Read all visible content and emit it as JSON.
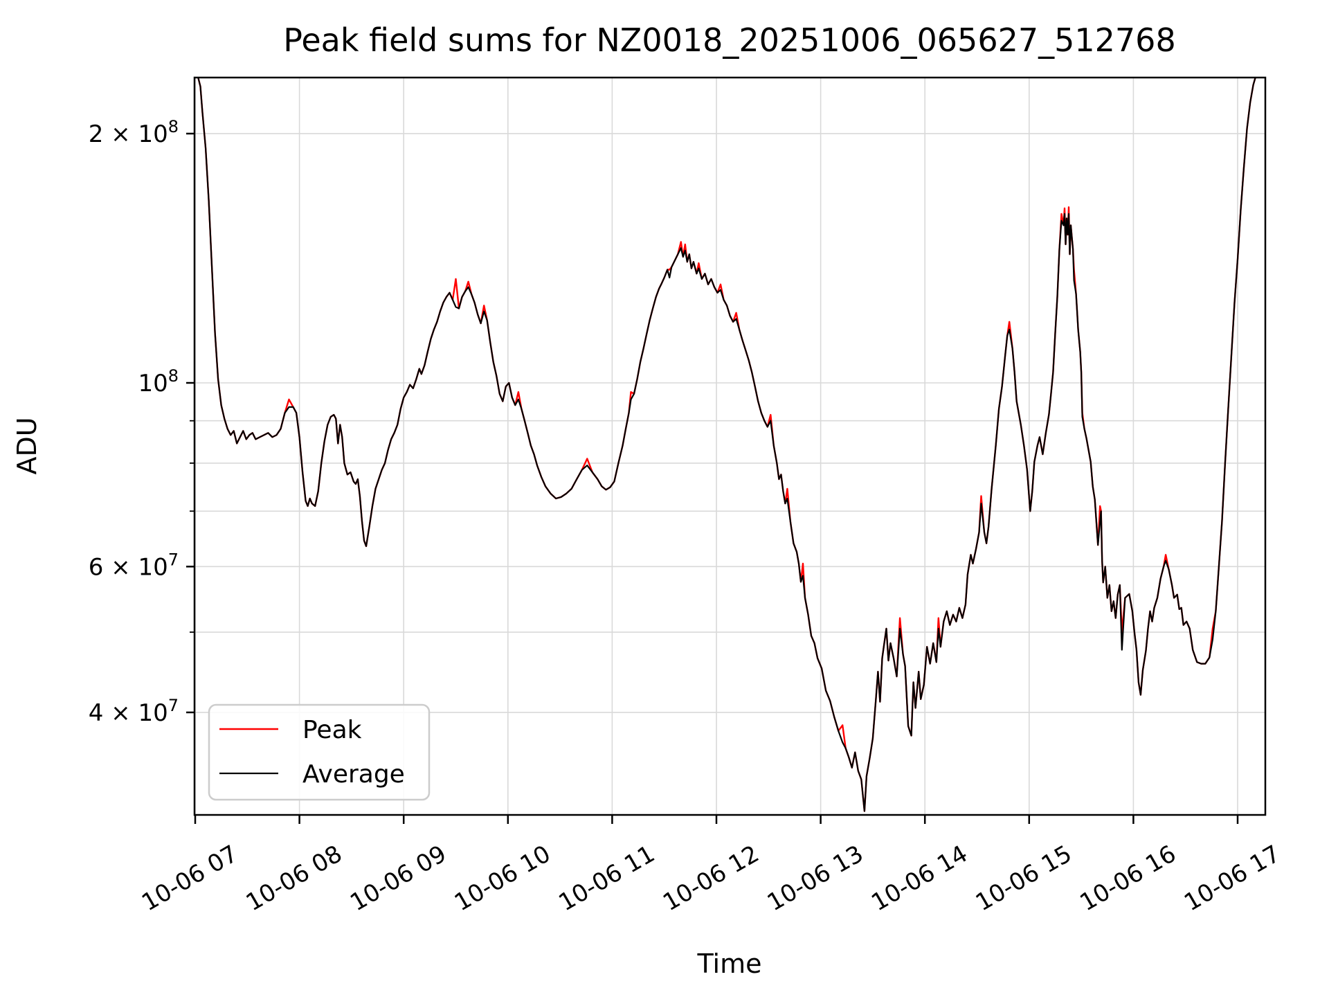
{
  "title": "Peak field sums for NZ0018_20251006_065627_512768",
  "axes": {
    "x_label": "Time",
    "y_label": "ADU"
  },
  "legend": {
    "items": [
      {
        "label": "Peak",
        "color": "#ff0000"
      },
      {
        "label": "Average",
        "color": "#000000"
      }
    ]
  },
  "chart_data": {
    "type": "line",
    "title": "Peak field sums for NZ0018_20251006_065627_512768",
    "xlabel": "Time",
    "ylabel": "ADU",
    "yscale": "log",
    "grid": "both",
    "legend_position": "lower left",
    "x_unit": "hours on 2025-10-06",
    "values_unit": "1e6 ADU",
    "xlim": [
      6.97,
      17.27
    ],
    "ylim_millions": [
      30.1,
      233.9
    ],
    "x_ticks": [
      {
        "t": 7,
        "label": "10-06 07"
      },
      {
        "t": 8,
        "label": "10-06 08"
      },
      {
        "t": 9,
        "label": "10-06 09"
      },
      {
        "t": 10,
        "label": "10-06 10"
      },
      {
        "t": 11,
        "label": "10-06 11"
      },
      {
        "t": 12,
        "label": "10-06 12"
      },
      {
        "t": 13,
        "label": "10-06 13"
      },
      {
        "t": 14,
        "label": "10-06 14"
      },
      {
        "t": 15,
        "label": "10-06 15"
      },
      {
        "t": 16,
        "label": "10-06 16"
      },
      {
        "t": 17,
        "label": "10-06 17"
      }
    ],
    "y_gridlines_millions": [
      200,
      100,
      90,
      80,
      70,
      60,
      50,
      40,
      30
    ],
    "y_ticks": [
      {
        "value": 200,
        "base": "2 × 10",
        "exp": "8"
      },
      {
        "value": 100,
        "base": "10",
        "exp": "8"
      },
      {
        "value": 60,
        "base": "6 × 10",
        "exp": "7"
      },
      {
        "value": 40,
        "base": "4 × 10",
        "exp": "7"
      }
    ],
    "series": [
      {
        "name": "Peak",
        "color": "#ff0000",
        "note": "identical to Average except upward spikes listed in overrides [t, value_millions]",
        "overrides": [
          [
            7.92,
            95.5
          ],
          [
            9.49,
            133.5
          ],
          [
            9.62,
            132.5
          ],
          [
            9.77,
            124
          ],
          [
            10.1,
            97.5
          ],
          [
            10.76,
            81
          ],
          [
            11.18,
            97.5
          ],
          [
            11.55,
            137
          ],
          [
            11.66,
            148
          ],
          [
            11.7,
            147
          ],
          [
            11.83,
            139.5
          ],
          [
            12.04,
            131.5
          ],
          [
            12.19,
            121.5
          ],
          [
            12.52,
            91.5
          ],
          [
            12.68,
            74.5
          ],
          [
            12.83,
            60.5
          ],
          [
            13.21,
            38.6
          ],
          [
            13.76,
            52
          ],
          [
            14.13,
            52
          ],
          [
            14.54,
            73
          ],
          [
            14.81,
            118.5
          ],
          [
            15.31,
            160
          ],
          [
            15.34,
            162.5
          ],
          [
            15.38,
            163
          ],
          [
            15.43,
            137
          ],
          [
            15.52,
            92
          ],
          [
            15.68,
            71
          ],
          [
            15.89,
            50
          ],
          [
            16.31,
            62
          ],
          [
            16.76,
            50.5
          ]
        ]
      },
      {
        "name": "Average",
        "color": "#000000",
        "t": [
          6.973,
          7.02,
          7.05,
          7.07,
          7.1,
          7.13,
          7.16,
          7.19,
          7.22,
          7.25,
          7.28,
          7.31,
          7.34,
          7.37,
          7.4,
          7.43,
          7.46,
          7.49,
          7.52,
          7.55,
          7.58,
          7.62,
          7.66,
          7.7,
          7.74,
          7.78,
          7.82,
          7.86,
          7.9,
          7.94,
          7.97,
          8.0,
          8.03,
          8.06,
          8.08,
          8.1,
          8.12,
          8.15,
          8.18,
          8.21,
          8.24,
          8.27,
          8.3,
          8.33,
          8.35,
          8.37,
          8.39,
          8.41,
          8.43,
          8.46,
          8.49,
          8.52,
          8.54,
          8.56,
          8.58,
          8.6,
          8.62,
          8.64,
          8.67,
          8.7,
          8.73,
          8.76,
          8.79,
          8.82,
          8.85,
          8.88,
          8.91,
          8.94,
          8.97,
          9.0,
          9.03,
          9.06,
          9.09,
          9.12,
          9.15,
          9.17,
          9.2,
          9.23,
          9.26,
          9.29,
          9.32,
          9.35,
          9.38,
          9.41,
          9.44,
          9.47,
          9.5,
          9.53,
          9.56,
          9.59,
          9.62,
          9.65,
          9.68,
          9.71,
          9.74,
          9.77,
          9.8,
          9.83,
          9.86,
          9.89,
          9.92,
          9.95,
          9.98,
          10.01,
          10.04,
          10.07,
          10.1,
          10.13,
          10.16,
          10.19,
          10.22,
          10.25,
          10.28,
          10.32,
          10.36,
          10.41,
          10.46,
          10.51,
          10.56,
          10.61,
          10.66,
          10.71,
          10.76,
          10.81,
          10.86,
          10.9,
          10.94,
          10.98,
          11.02,
          11.06,
          11.1,
          11.13,
          11.16,
          11.18,
          11.21,
          11.24,
          11.27,
          11.3,
          11.33,
          11.36,
          11.39,
          11.42,
          11.45,
          11.47,
          11.5,
          11.53,
          11.55,
          11.57,
          11.6,
          11.63,
          11.66,
          11.68,
          11.7,
          11.72,
          11.74,
          11.76,
          11.78,
          11.81,
          11.83,
          11.86,
          11.89,
          11.92,
          11.95,
          11.98,
          12.01,
          12.04,
          12.07,
          12.1,
          12.13,
          12.16,
          12.19,
          12.22,
          12.25,
          12.28,
          12.31,
          12.34,
          12.37,
          12.4,
          12.43,
          12.46,
          12.49,
          12.52,
          12.55,
          12.58,
          12.6,
          12.62,
          12.64,
          12.66,
          12.68,
          12.71,
          12.74,
          12.77,
          12.79,
          12.81,
          12.83,
          12.85,
          12.88,
          12.91,
          12.94,
          12.97,
          13.01,
          13.05,
          13.09,
          13.13,
          13.17,
          13.21,
          13.24,
          13.27,
          13.3,
          13.33,
          13.36,
          13.39,
          13.42,
          13.44,
          13.47,
          13.5,
          13.53,
          13.55,
          13.57,
          13.59,
          13.61,
          13.63,
          13.65,
          13.67,
          13.7,
          13.73,
          13.76,
          13.79,
          13.81,
          13.84,
          13.87,
          13.89,
          13.91,
          13.94,
          13.96,
          13.99,
          14.02,
          14.05,
          14.08,
          14.11,
          14.13,
          14.15,
          14.18,
          14.21,
          14.24,
          14.27,
          14.3,
          14.33,
          14.36,
          14.39,
          14.41,
          14.44,
          14.46,
          14.49,
          14.52,
          14.54,
          14.57,
          14.59,
          14.61,
          14.64,
          14.68,
          14.71,
          14.74,
          14.77,
          14.79,
          14.81,
          14.84,
          14.86,
          14.88,
          14.92,
          14.95,
          14.98,
          15.01,
          15.03,
          15.05,
          15.08,
          15.1,
          15.13,
          15.16,
          15.19,
          15.21,
          15.23,
          15.25,
          15.27,
          15.29,
          15.31,
          15.33,
          15.34,
          15.35,
          15.36,
          15.37,
          15.38,
          15.39,
          15.4,
          15.41,
          15.42,
          15.43,
          15.45,
          15.46,
          15.47,
          15.49,
          15.5,
          15.51,
          15.53,
          15.55,
          15.57,
          15.59,
          15.61,
          15.63,
          15.66,
          15.68,
          15.69,
          15.7,
          15.71,
          15.73,
          15.75,
          15.77,
          15.79,
          15.81,
          15.83,
          15.85,
          15.87,
          15.89,
          15.92,
          15.96,
          15.99,
          16.01,
          16.03,
          16.05,
          16.07,
          16.09,
          16.12,
          16.14,
          16.16,
          16.18,
          16.2,
          16.23,
          16.26,
          16.29,
          16.31,
          16.34,
          16.37,
          16.39,
          16.42,
          16.44,
          16.46,
          16.48,
          16.51,
          16.54,
          16.57,
          16.61,
          16.65,
          16.69,
          16.73,
          16.76,
          16.79,
          16.82,
          16.85,
          16.88,
          16.91,
          16.94,
          16.97,
          17.0,
          17.03,
          17.06,
          17.09,
          17.12,
          17.15,
          17.18,
          17.22,
          17.27
        ],
        "v": [
          242,
          236,
          228,
          212,
          192,
          166,
          138,
          115,
          101,
          94,
          90.5,
          88,
          86.5,
          87.5,
          84.5,
          86,
          87.5,
          85.5,
          86.5,
          87,
          85.5,
          86,
          86.5,
          87,
          86,
          86.5,
          88,
          92,
          93.5,
          93.5,
          92,
          86,
          78,
          72,
          71,
          72.5,
          71.5,
          71,
          74,
          80,
          85,
          89,
          91,
          91.5,
          90.5,
          84.5,
          89,
          86,
          80,
          77.5,
          78,
          76,
          75.5,
          76.5,
          73,
          68,
          64.5,
          63.5,
          67,
          71,
          74.5,
          76.5,
          78.5,
          80,
          83,
          85.5,
          87,
          89,
          93,
          96,
          97.5,
          99.5,
          98.5,
          101,
          104,
          102.5,
          105,
          109,
          113,
          116,
          118.5,
          122,
          125,
          127,
          128.5,
          126,
          123.5,
          123,
          127,
          129,
          130.5,
          128,
          125,
          121,
          118,
          122,
          119,
          112,
          106,
          102,
          97,
          95,
          99,
          100,
          96,
          94,
          95.5,
          93,
          90,
          87,
          84,
          82,
          79.5,
          77,
          75,
          73.5,
          72.5,
          72.8,
          73.5,
          74.5,
          76.5,
          78.5,
          79.5,
          78,
          76.5,
          75,
          74.3,
          74.8,
          76,
          80,
          84,
          88,
          92,
          95.5,
          97,
          101,
          106,
          110,
          114.5,
          119,
          123,
          127,
          130,
          131.5,
          134,
          137,
          134,
          138,
          140.5,
          143,
          145.5,
          142,
          144.5,
          140,
          143,
          137.5,
          140,
          135.5,
          137.5,
          133.5,
          135.5,
          131.5,
          133.5,
          130.5,
          128.5,
          129.5,
          126,
          124,
          120.5,
          118.5,
          119.5,
          116,
          112.5,
          109.5,
          106.5,
          103,
          99,
          95,
          92,
          90,
          88.5,
          90,
          84,
          80,
          76.5,
          77.5,
          74,
          71.5,
          72.5,
          68,
          64,
          62.5,
          60.5,
          57.5,
          58.5,
          55,
          52.5,
          49.5,
          48.5,
          46.5,
          45.2,
          42.5,
          41.3,
          39.5,
          38,
          36.8,
          36.2,
          35.3,
          34.3,
          35.8,
          34,
          33.2,
          30.4,
          33.5,
          35.2,
          37.2,
          41.5,
          44.8,
          41.2,
          46.5,
          48.5,
          50.5,
          46.2,
          48.5,
          46.5,
          44.2,
          50.5,
          47,
          45.5,
          38.5,
          37.5,
          43.5,
          40.5,
          44.8,
          41.5,
          43.2,
          48,
          45.8,
          48.5,
          46,
          50.5,
          48,
          51.5,
          53,
          51,
          52.5,
          51.5,
          53.5,
          52,
          54,
          58.7,
          62,
          60.5,
          63,
          66,
          71.5,
          66,
          64,
          67,
          74.5,
          84,
          93,
          99,
          108,
          114,
          116,
          110,
          103,
          95,
          89,
          84,
          78.6,
          70,
          74,
          80.3,
          84,
          86,
          82,
          87,
          91.6,
          97,
          103,
          115,
          127,
          145,
          157,
          155,
          160,
          147,
          158,
          151,
          160,
          143,
          155,
          150,
          145,
          133,
          128,
          122,
          116,
          109,
          103,
          91,
          88,
          85.7,
          83,
          80.3,
          75,
          72.3,
          63.7,
          68,
          70,
          61,
          57.4,
          60,
          55,
          57,
          53,
          54.5,
          52,
          55.5,
          57,
          47.6,
          55,
          55.6,
          53,
          50,
          47.6,
          43.5,
          42,
          45,
          47.5,
          50.5,
          53,
          51.5,
          53.5,
          55,
          58,
          60,
          61,
          59.5,
          57,
          55,
          55.5,
          53.3,
          53.5,
          51,
          51.5,
          50.5,
          47.6,
          46,
          45.8,
          45.8,
          46.6,
          49,
          53,
          60,
          68,
          80,
          93,
          108,
          125,
          141,
          162,
          182,
          203,
          218,
          229,
          236,
          241,
          242
        ]
      }
    ]
  }
}
